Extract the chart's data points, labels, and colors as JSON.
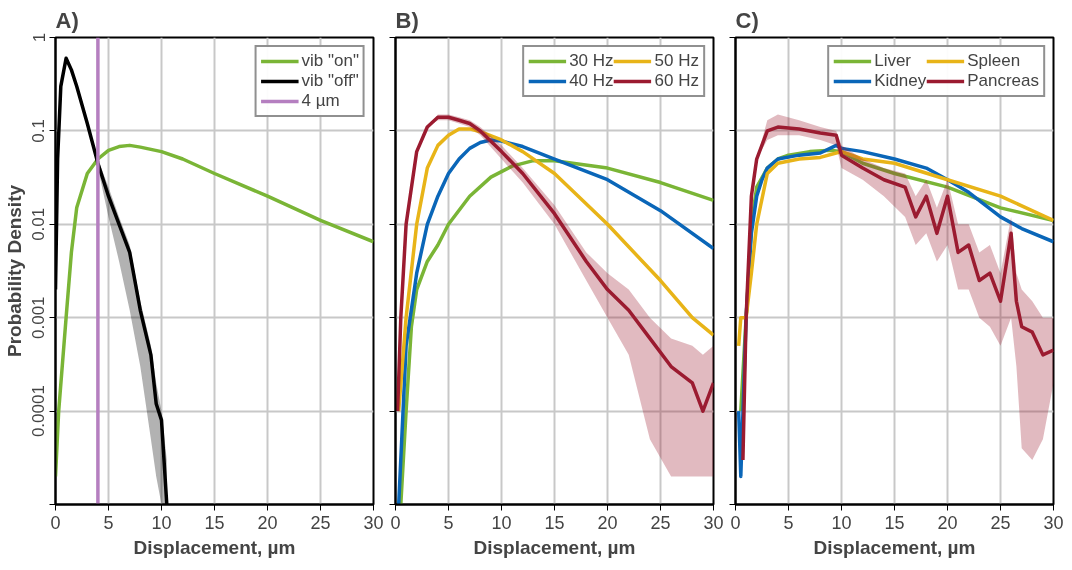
{
  "chart_data": [
    {
      "type": "line",
      "title": "A)",
      "xlabel": "Displacement, µm",
      "ylabel": "Probability Density",
      "log": "y",
      "grid": true,
      "legend": "top right",
      "line_style": "solid",
      "xlim": [
        0,
        30
      ],
      "ylim": [
        1e-05,
        1
      ],
      "xticks": [
        0,
        5,
        10,
        15,
        20,
        25,
        30
      ],
      "yticks": [
        {
          "value": 1e-05,
          "label": null
        },
        0.0001,
        0.001,
        0.01,
        0.1,
        1
      ],
      "series": [
        {
          "name": "vib \"on\"",
          "color": "#7ab536",
          "x": [
            0,
            0.3,
            1,
            1.5,
            2,
            3,
            4,
            5,
            6,
            7,
            8,
            10,
            12,
            15,
            20,
            25,
            30
          ],
          "values": [
            2e-05,
            0.0001,
            0.001,
            0.005,
            0.015,
            0.035,
            0.05,
            0.062,
            0.068,
            0.07,
            0.067,
            0.06,
            0.05,
            0.035,
            0.02,
            0.011,
            0.0065
          ]
        },
        {
          "name": "vib \"off\"",
          "color": "#000000",
          "x": [
            0,
            0.2,
            0.5,
            1,
            1.5,
            2,
            3,
            4,
            5,
            6,
            7,
            8,
            9,
            9.5,
            10,
            10.5
          ],
          "values": [
            0.002,
            0.05,
            0.3,
            0.6,
            0.45,
            0.3,
            0.12,
            0.045,
            0.02,
            0.01,
            0.005,
            0.0012,
            0.0004,
            0.00012,
            8e-05,
            1e-05
          ],
          "lower": [
            0.002,
            0.05,
            0.3,
            0.6,
            0.45,
            0.3,
            0.12,
            0.04,
            0.012,
            0.004,
            0.0012,
            0.0003,
            5e-05,
            2e-05,
            1e-05,
            1e-05
          ],
          "upper": [
            0.002,
            0.05,
            0.3,
            0.6,
            0.45,
            0.3,
            0.12,
            0.05,
            0.025,
            0.012,
            0.006,
            0.0015,
            0.0005,
            0.0002,
            0.0001,
            3e-05
          ]
        },
        {
          "name": "4 µm",
          "color": "#b57fc0",
          "x": [
            4,
            4
          ],
          "values": [
            1e-05,
            1
          ]
        }
      ]
    },
    {
      "type": "line",
      "title": "B)",
      "xlabel": "Displacement, µm",
      "log": "y",
      "grid": true,
      "legend": "top right",
      "tick_labels": "x",
      "line_style": "solid",
      "xlim": [
        0,
        30
      ],
      "ylim": [
        1e-05,
        1
      ],
      "xticks": [
        0,
        5,
        10,
        15,
        20,
        25,
        30
      ],
      "yticks": [
        {
          "value": 1e-05,
          "label": null
        },
        {
          "value": 0.0001,
          "label": null
        },
        {
          "value": 0.001,
          "label": null
        },
        {
          "value": 0.01,
          "label": null
        },
        {
          "value": 0.1,
          "label": null
        },
        {
          "value": 1,
          "label": null
        }
      ],
      "series": [
        {
          "name": "30 Hz",
          "color": "#7ab536",
          "x": [
            0.5,
            1,
            1.5,
            2,
            3,
            4,
            5,
            7,
            9,
            11,
            13,
            15,
            20,
            25,
            30
          ],
          "values": [
            1e-05,
            0.0001,
            0.0008,
            0.002,
            0.004,
            0.006,
            0.01,
            0.02,
            0.032,
            0.042,
            0.048,
            0.048,
            0.04,
            0.028,
            0.018
          ]
        },
        {
          "name": "40 Hz",
          "color": "#0a66b8",
          "x": [
            0.3,
            1,
            2,
            3,
            4,
            5,
            6,
            7,
            8,
            9,
            10,
            12,
            15,
            20,
            25,
            30
          ],
          "values": [
            1e-05,
            0.0005,
            0.003,
            0.01,
            0.02,
            0.035,
            0.05,
            0.065,
            0.075,
            0.08,
            0.078,
            0.068,
            0.05,
            0.03,
            0.014,
            0.0055
          ]
        },
        {
          "name": "50 Hz",
          "color": "#e8b418",
          "x": [
            0.3,
            1,
            2,
            3,
            4,
            5,
            6,
            7,
            8,
            10,
            12,
            15,
            20,
            25,
            28,
            30
          ],
          "values": [
            0.0001,
            0.001,
            0.01,
            0.04,
            0.07,
            0.09,
            0.105,
            0.105,
            0.098,
            0.08,
            0.06,
            0.035,
            0.01,
            0.0025,
            0.001,
            0.00065
          ]
        },
        {
          "name": "60 Hz",
          "color": "#9b1b30",
          "x": [
            0.2,
            0.5,
            1,
            2,
            3,
            4,
            5,
            6,
            7,
            8,
            10,
            12,
            15,
            18,
            20,
            22,
            24,
            26,
            28,
            29,
            30
          ],
          "values": [
            0.0001,
            0.001,
            0.01,
            0.06,
            0.11,
            0.14,
            0.14,
            0.13,
            0.12,
            0.1,
            0.06,
            0.035,
            0.013,
            0.004,
            0.002,
            0.0012,
            0.0006,
            0.0003,
            0.0002,
            0.0001,
            0.0002
          ],
          "lower": [
            0.0001,
            0.001,
            0.01,
            0.06,
            0.11,
            0.13,
            0.13,
            0.12,
            0.11,
            0.09,
            0.05,
            0.028,
            0.01,
            0.0025,
            0.001,
            0.0004,
            5e-05,
            2e-05,
            2e-05,
            2e-05,
            2e-05
          ],
          "upper": [
            0.0001,
            0.001,
            0.01,
            0.06,
            0.11,
            0.15,
            0.15,
            0.14,
            0.13,
            0.11,
            0.07,
            0.04,
            0.016,
            0.005,
            0.003,
            0.002,
            0.001,
            0.0006,
            0.0005,
            0.0004,
            0.0005
          ]
        }
      ]
    },
    {
      "type": "line",
      "title": "C)",
      "xlabel": "Displacement, µm",
      "log": "y",
      "grid": true,
      "legend": "top right",
      "tick_labels": "x",
      "line_style": "solid",
      "xlim": [
        0,
        30
      ],
      "ylim": [
        1e-05,
        1
      ],
      "xticks": [
        0,
        5,
        10,
        15,
        20,
        25,
        30
      ],
      "yticks": [
        {
          "value": 1e-05,
          "label": null
        },
        {
          "value": 0.0001,
          "label": null
        },
        {
          "value": 0.001,
          "label": null
        },
        {
          "value": 0.01,
          "label": null
        },
        {
          "value": 0.1,
          "label": null
        },
        {
          "value": 1,
          "label": null
        }
      ],
      "series": [
        {
          "name": "Liver",
          "color": "#7ab536",
          "x": [
            0.5,
            1,
            1.5,
            2,
            3,
            4,
            5,
            7,
            9,
            10,
            12,
            15,
            20,
            25,
            30
          ],
          "values": [
            0.0001,
            0.001,
            0.01,
            0.025,
            0.04,
            0.05,
            0.055,
            0.06,
            0.062,
            0.06,
            0.045,
            0.035,
            0.025,
            0.015,
            0.011
          ]
        },
        {
          "name": "Kidney",
          "color": "#0a66b8",
          "x": [
            0.3,
            0.5,
            1,
            1.5,
            2,
            2.5,
            3,
            4,
            6,
            8,
            9.5,
            10,
            12,
            15,
            18,
            20,
            22,
            25,
            27,
            30
          ],
          "values": [
            0.0001,
            2e-05,
            0.001,
            0.008,
            0.02,
            0.03,
            0.04,
            0.05,
            0.055,
            0.058,
            0.07,
            0.065,
            0.06,
            0.05,
            0.04,
            0.03,
            0.022,
            0.012,
            0.009,
            0.0065
          ]
        },
        {
          "name": "Spleen",
          "color": "#e8b418",
          "x": [
            0.3,
            0.5,
            1,
            1.5,
            2,
            3,
            4,
            6,
            8,
            9.5,
            10,
            12,
            15,
            20,
            25,
            30
          ],
          "values": [
            0.0005,
            0.001,
            0.001,
            0.003,
            0.01,
            0.035,
            0.045,
            0.05,
            0.052,
            0.058,
            0.06,
            0.05,
            0.045,
            0.03,
            0.02,
            0.011
          ]
        },
        {
          "name": "Pancreas",
          "color": "#9b1b30",
          "x": [
            0.7,
            1,
            1.5,
            2,
            3,
            4,
            6,
            8,
            9.5,
            10,
            12,
            14,
            16,
            17,
            18,
            19,
            20,
            21,
            22,
            23,
            24,
            25,
            26,
            26.5,
            27,
            28,
            29,
            30
          ],
          "values": [
            3e-05,
            0.001,
            0.02,
            0.05,
            0.1,
            0.11,
            0.105,
            0.095,
            0.09,
            0.055,
            0.04,
            0.03,
            0.025,
            0.012,
            0.02,
            0.008,
            0.02,
            0.005,
            0.006,
            0.0025,
            0.003,
            0.0015,
            0.008,
            0.0015,
            0.0008,
            0.0007,
            0.0004,
            0.00045
          ],
          "lower": [
            3e-05,
            0.001,
            0.02,
            0.05,
            0.08,
            0.09,
            0.09,
            0.08,
            0.07,
            0.04,
            0.03,
            0.02,
            0.012,
            0.006,
            0.008,
            0.004,
            0.006,
            0.002,
            0.002,
            0.001,
            0.0008,
            0.0005,
            0.001,
            0.0003,
            4e-05,
            3e-05,
            5e-05,
            0.0002
          ],
          "upper": [
            3e-05,
            0.001,
            0.02,
            0.05,
            0.13,
            0.15,
            0.13,
            0.11,
            0.1,
            0.07,
            0.05,
            0.04,
            0.035,
            0.02,
            0.03,
            0.015,
            0.03,
            0.01,
            0.01,
            0.005,
            0.006,
            0.003,
            0.012,
            0.003,
            0.002,
            0.0015,
            0.001,
            0.001
          ]
        }
      ]
    }
  ]
}
